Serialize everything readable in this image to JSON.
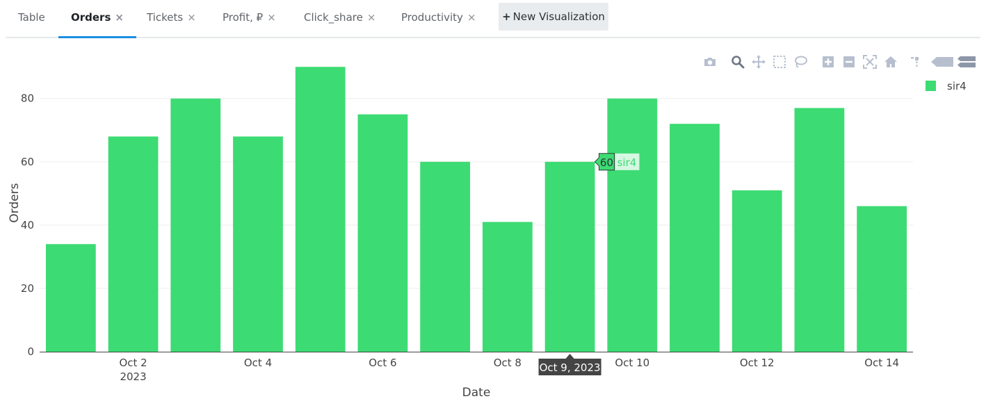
{
  "tabs": [
    {
      "label": "Table",
      "closable": false,
      "active": false
    },
    {
      "label": "Orders",
      "closable": true,
      "active": true
    },
    {
      "label": "Tickets",
      "closable": true,
      "active": false
    },
    {
      "label": "Profit, ₽",
      "closable": true,
      "active": false
    },
    {
      "label": "Click_share",
      "closable": true,
      "active": false
    },
    {
      "label": "Productivity",
      "closable": true,
      "active": false
    }
  ],
  "close_glyph": "×",
  "new_visualization": {
    "plus": "+",
    "label": "New Visualization"
  },
  "modebar_icons": [
    "camera-icon",
    "zoom-icon",
    "pan-icon",
    "box-select-icon",
    "lasso-select-icon",
    "zoom-in-icon",
    "zoom-out-icon",
    "autoscale-icon",
    "reset-axes-icon",
    "spike-lines-icon",
    "hover-closest-icon",
    "hover-compare-icon"
  ],
  "colors": {
    "bar": "#3ddb73",
    "axis": "#444444",
    "grid": "#eeeeee",
    "hover_x_bg": "#444444",
    "modebar": "#b7bfcf"
  },
  "hover": {
    "x_label": "Oct 9, 2023",
    "y_value": "60",
    "series": "sir4"
  },
  "chart_data": {
    "type": "bar",
    "x": [
      "2023-10-01",
      "2023-10-02",
      "2023-10-03",
      "2023-10-04",
      "2023-10-05",
      "2023-10-06",
      "2023-10-07",
      "2023-10-08",
      "2023-10-09",
      "2023-10-10",
      "2023-10-11",
      "2023-10-12",
      "2023-10-13",
      "2023-10-14"
    ],
    "series": [
      {
        "name": "sir4",
        "values": [
          34,
          68,
          80,
          68,
          90,
          75,
          60,
          41,
          60,
          80,
          72,
          51,
          77,
          46
        ]
      }
    ],
    "xlabel": "Date",
    "ylabel": "Orders",
    "ylim": [
      0,
      94
    ],
    "yticks": [
      0,
      20,
      40,
      60,
      80
    ],
    "xticks": [
      {
        "date": "2023-10-02",
        "label": "Oct 2",
        "sublabel": "2023"
      },
      {
        "date": "2023-10-04",
        "label": "Oct 4"
      },
      {
        "date": "2023-10-06",
        "label": "Oct 6"
      },
      {
        "date": "2023-10-08",
        "label": "Oct 8"
      },
      {
        "date": "2023-10-10",
        "label": "Oct 10"
      },
      {
        "date": "2023-10-12",
        "label": "Oct 12"
      },
      {
        "date": "2023-10-14",
        "label": "Oct 14"
      }
    ],
    "grid": true,
    "legend_position": "top-right"
  }
}
